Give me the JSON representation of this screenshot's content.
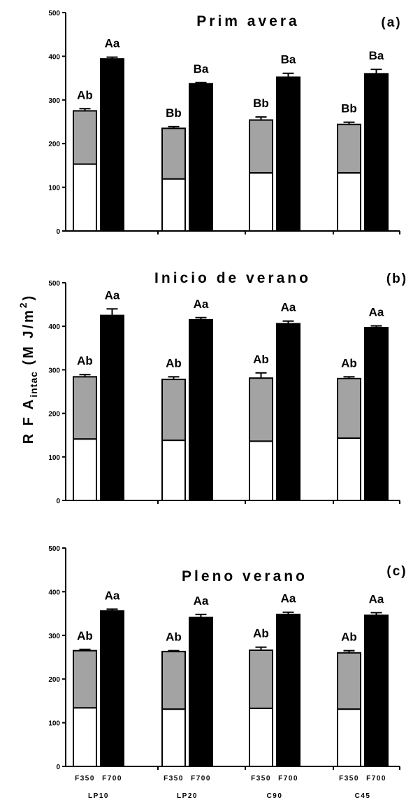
{
  "y_axis_label": {
    "main": "R F A",
    "sub": "intac",
    "unit_open": " (M J/m",
    "unit_sup": "2",
    "unit_close": ")"
  },
  "colors": {
    "base": "#ffffff",
    "segment": "#a3a3a3",
    "total": "#000000",
    "stroke": "#000000"
  },
  "chart_data": [
    {
      "type": "bar",
      "title": "Prim avera",
      "panel_label": "(a)",
      "ylim": [
        0,
        500
      ],
      "yticks": [
        0,
        100,
        200,
        300,
        400,
        500
      ],
      "grid": false,
      "categories": [
        "F350",
        "F700",
        "F350",
        "F700",
        "F350",
        "F700",
        "F350",
        "F700"
      ],
      "groups": [
        "LP10",
        "LP20",
        "C90",
        "C45"
      ],
      "f350_lower": [
        153,
        119,
        133,
        133
      ],
      "f350_total": [
        275,
        235,
        254,
        244
      ],
      "f350_error": [
        5,
        4,
        7,
        5
      ],
      "f700_total": [
        394,
        337,
        352,
        360
      ],
      "f700_error": [
        4,
        3,
        9,
        10
      ],
      "f350_labels": [
        "Ab",
        "Bb",
        "Bb",
        "Bb"
      ],
      "f700_labels": [
        "Aa",
        "Ba",
        "Ba",
        "Ba"
      ]
    },
    {
      "type": "bar",
      "title": "Inicio de verano",
      "panel_label": "(b)",
      "ylim": [
        0,
        500
      ],
      "yticks": [
        0,
        100,
        200,
        300,
        400,
        500
      ],
      "grid": false,
      "categories": [
        "F350",
        "F700",
        "F350",
        "F700",
        "F350",
        "F700",
        "F350",
        "F700"
      ],
      "groups": [
        "LP10",
        "LP20",
        "C90",
        "C45"
      ],
      "f350_lower": [
        141,
        138,
        136,
        143
      ],
      "f350_total": [
        284,
        278,
        281,
        280
      ],
      "f350_error": [
        5,
        6,
        12,
        4
      ],
      "f700_total": [
        425,
        415,
        406,
        397
      ],
      "f700_error": [
        15,
        5,
        6,
        4
      ],
      "f350_labels": [
        "Ab",
        "Ab",
        "Ab",
        "Ab"
      ],
      "f700_labels": [
        "Aa",
        "Aa",
        "Aa",
        "Aa"
      ]
    },
    {
      "type": "bar",
      "title": "Pleno verano",
      "panel_label": "(c)",
      "ylim": [
        0,
        500
      ],
      "yticks": [
        0,
        100,
        200,
        300,
        400,
        500
      ],
      "grid": false,
      "categories": [
        "F350",
        "F700",
        "F350",
        "F700",
        "F350",
        "F700",
        "F350",
        "F700"
      ],
      "groups": [
        "LP10",
        "LP20",
        "C90",
        "C45"
      ],
      "f350_lower": [
        134,
        131,
        133,
        131
      ],
      "f350_total": [
        265,
        263,
        266,
        260
      ],
      "f350_error": [
        3,
        2,
        7,
        5
      ],
      "f700_total": [
        356,
        341,
        348,
        346
      ],
      "f700_error": [
        4,
        7,
        5,
        6
      ],
      "f350_labels": [
        "Ab",
        "Ab",
        "Ab",
        "Ab"
      ],
      "f700_labels": [
        "Aa",
        "Aa",
        "Aa",
        "Aa"
      ]
    }
  ]
}
